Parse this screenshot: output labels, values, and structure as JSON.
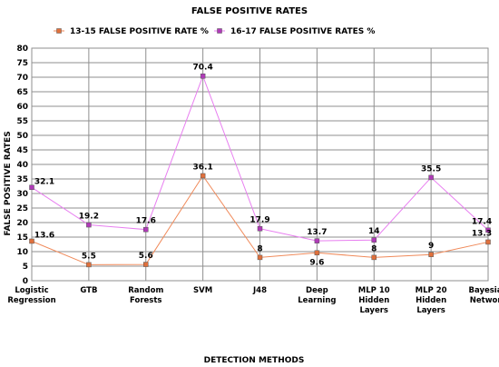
{
  "chart_data": {
    "type": "line",
    "title": "FALSE POSITIVE RATES",
    "xlabel": "DETECTION METHODS",
    "ylabel": "FALSE POSITIVE RATES",
    "ylim": [
      0,
      80
    ],
    "yticks": [
      0,
      5,
      10,
      15,
      20,
      25,
      30,
      35,
      40,
      45,
      50,
      55,
      60,
      65,
      70,
      75,
      80
    ],
    "grid": true,
    "legend_position": "top",
    "categories": [
      [
        "Logistic",
        "Regression"
      ],
      [
        "GTB"
      ],
      [
        "Random",
        "Forests"
      ],
      [
        "SVM"
      ],
      [
        "J48"
      ],
      [
        "Deep",
        "Learning"
      ],
      [
        "MLP 10",
        "Hidden",
        "Layers"
      ],
      [
        "MLP 20",
        "Hidden",
        "Layers"
      ],
      [
        "Bayesian",
        "Network"
      ]
    ],
    "series": [
      {
        "name": "13-15 FALSE POSITIVE RATE %",
        "color": "#f08a5a",
        "marker_color": "#e0703c",
        "values": [
          13.6,
          5.5,
          5.6,
          36.1,
          8,
          9.6,
          8,
          9,
          13.3
        ]
      },
      {
        "name": "16-17 FALSE POSITIVE RATES %",
        "color": "#e87ef0",
        "marker_color": "#b03ab8",
        "values": [
          32.1,
          19.2,
          17.6,
          70.4,
          17.9,
          13.7,
          14,
          35.5,
          17.4
        ]
      }
    ]
  }
}
